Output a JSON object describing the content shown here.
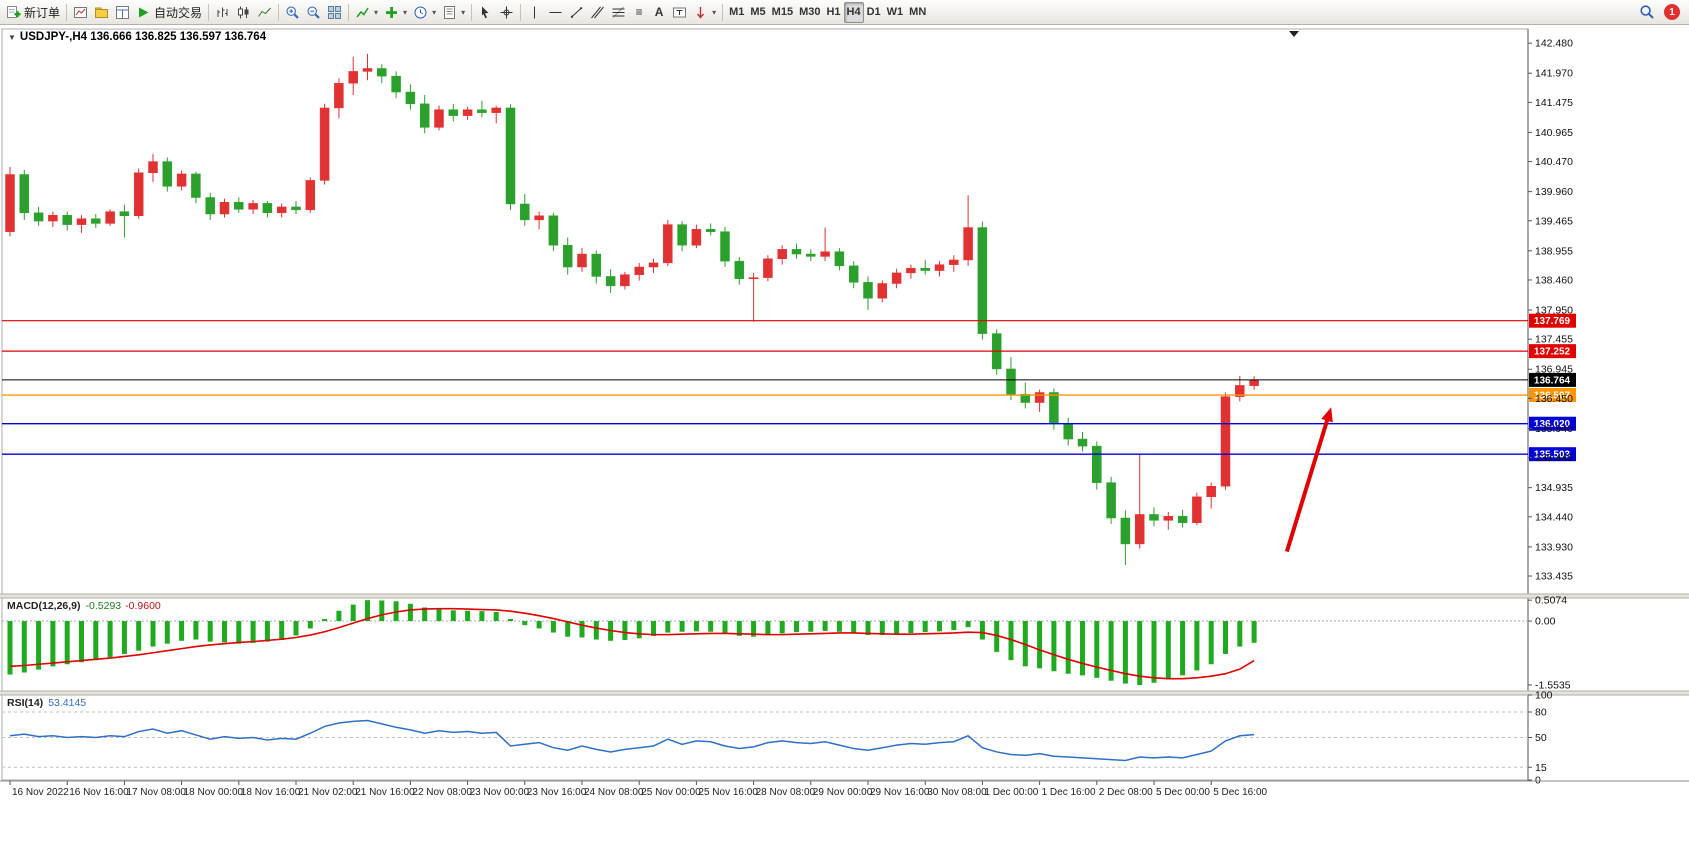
{
  "toolbar": {
    "new_order_label": "新订单",
    "autotrade_label": "自动交易",
    "timeframes": [
      "M1",
      "M5",
      "M15",
      "M30",
      "H1",
      "H4",
      "D1",
      "W1",
      "MN"
    ],
    "active_timeframe": "H4",
    "notification_count": "1"
  },
  "chart_header": {
    "expand_glyph": "▼",
    "symbol_period": "USDJPY-,H4",
    "ohlc": "136.666 136.825 136.597 136.764"
  },
  "indicators": {
    "macd_label": "MACD(12,26,9)",
    "macd_value_main": "-0.5293",
    "macd_value_signal": "-0.9600",
    "rsi_label": "RSI(14)",
    "rsi_value": "53.4145"
  },
  "time_axis": {
    "labels": [
      "16 Nov 2022",
      "16 Nov 16:00",
      "17 Nov 08:00",
      "18 Nov 00:00",
      "18 Nov 16:00",
      "21 Nov 02:00",
      "21 Nov 16:00",
      "22 Nov 08:00",
      "23 Nov 00:00",
      "23 Nov 16:00",
      "24 Nov 08:00",
      "25 Nov 00:00",
      "25 Nov 16:00",
      "28 Nov 08:00",
      "29 Nov 00:00",
      "29 Nov 16:00",
      "30 Nov 08:00",
      "1 Dec 00:00",
      "1 Dec 16:00",
      "2 Dec 08:00",
      "5 Dec 00:00",
      "5 Dec 16:00"
    ]
  },
  "chart_data": [
    {
      "type": "candlestick",
      "title": "USDJPY-,H4",
      "ohlc_current": {
        "open": "136.666",
        "high": "136.825",
        "low": "136.597",
        "close": "136.764"
      },
      "up_color": "#e03232",
      "down_color": "#2ca02c",
      "ylim": [
        133.13,
        142.72
      ],
      "y_ticks": [
        "142.480",
        "141.970",
        "141.475",
        "140.965",
        "140.470",
        "139.960",
        "139.465",
        "138.955",
        "138.460",
        "137.950",
        "137.455",
        "136.945",
        "136.450",
        "135.940",
        "135.445",
        "134.935",
        "134.440",
        "133.930",
        "133.435"
      ],
      "candles": [
        [
          139.28,
          140.38,
          139.2,
          140.25
        ],
        [
          140.25,
          140.33,
          139.48,
          139.6
        ],
        [
          139.6,
          139.7,
          139.38,
          139.46
        ],
        [
          139.46,
          139.62,
          139.36,
          139.56
        ],
        [
          139.56,
          139.62,
          139.3,
          139.4
        ],
        [
          139.4,
          139.56,
          139.26,
          139.5
        ],
        [
          139.5,
          139.58,
          139.34,
          139.42
        ],
        [
          139.42,
          139.66,
          139.38,
          139.62
        ],
        [
          139.62,
          139.74,
          139.18,
          139.55
        ],
        [
          139.55,
          140.35,
          139.5,
          140.28
        ],
        [
          140.28,
          140.6,
          140.12,
          140.47
        ],
        [
          140.47,
          140.54,
          139.96,
          140.05
        ],
        [
          140.05,
          140.32,
          139.98,
          140.26
        ],
        [
          140.26,
          140.3,
          139.76,
          139.86
        ],
        [
          139.86,
          139.94,
          139.48,
          139.58
        ],
        [
          139.58,
          139.84,
          139.52,
          139.78
        ],
        [
          139.78,
          139.86,
          139.6,
          139.66
        ],
        [
          139.66,
          139.82,
          139.58,
          139.76
        ],
        [
          139.76,
          139.8,
          139.52,
          139.6
        ],
        [
          139.6,
          139.76,
          139.52,
          139.7
        ],
        [
          139.7,
          139.8,
          139.58,
          139.65
        ],
        [
          139.65,
          140.2,
          139.6,
          140.15
        ],
        [
          140.15,
          141.45,
          140.08,
          141.38
        ],
        [
          141.38,
          141.88,
          141.2,
          141.8
        ],
        [
          141.8,
          142.25,
          141.6,
          142.0
        ],
        [
          142.0,
          142.3,
          141.85,
          142.05
        ],
        [
          142.05,
          142.12,
          141.8,
          141.92
        ],
        [
          141.92,
          142.0,
          141.55,
          141.65
        ],
        [
          141.65,
          141.78,
          141.35,
          141.45
        ],
        [
          141.45,
          141.6,
          140.95,
          141.05
        ],
        [
          141.05,
          141.42,
          141.0,
          141.35
        ],
        [
          141.35,
          141.45,
          141.15,
          141.25
        ],
        [
          141.25,
          141.4,
          141.18,
          141.35
        ],
        [
          141.35,
          141.5,
          141.22,
          141.3
        ],
        [
          141.3,
          141.42,
          141.12,
          141.38
        ],
        [
          141.38,
          141.44,
          139.65,
          139.75
        ],
        [
          139.75,
          139.92,
          139.38,
          139.48
        ],
        [
          139.48,
          139.62,
          139.32,
          139.55
        ],
        [
          139.55,
          139.6,
          138.95,
          139.05
        ],
        [
          139.05,
          139.18,
          138.55,
          138.68
        ],
        [
          138.68,
          139.0,
          138.6,
          138.9
        ],
        [
          138.9,
          138.96,
          138.4,
          138.52
        ],
        [
          138.52,
          138.64,
          138.24,
          138.36
        ],
        [
          138.36,
          138.6,
          138.3,
          138.55
        ],
        [
          138.55,
          138.75,
          138.45,
          138.68
        ],
        [
          138.68,
          138.82,
          138.58,
          138.75
        ],
        [
          138.75,
          139.48,
          138.7,
          139.4
        ],
        [
          139.4,
          139.46,
          138.95,
          139.05
        ],
        [
          139.05,
          139.4,
          139.0,
          139.32
        ],
        [
          139.32,
          139.42,
          139.22,
          139.28
        ],
        [
          139.28,
          139.36,
          138.68,
          138.78
        ],
        [
          138.78,
          138.85,
          138.38,
          138.48
        ],
        [
          138.48,
          138.58,
          137.75,
          138.5
        ],
        [
          138.5,
          138.88,
          138.44,
          138.82
        ],
        [
          138.82,
          139.05,
          138.72,
          138.98
        ],
        [
          138.98,
          139.08,
          138.82,
          138.9
        ],
        [
          138.9,
          138.98,
          138.78,
          138.86
        ],
        [
          138.86,
          139.35,
          138.78,
          138.94
        ],
        [
          138.94,
          139.0,
          138.62,
          138.7
        ],
        [
          138.7,
          138.78,
          138.32,
          138.42
        ],
        [
          138.42,
          138.52,
          137.95,
          138.15
        ],
        [
          138.15,
          138.45,
          138.08,
          138.4
        ],
        [
          138.4,
          138.65,
          138.32,
          138.58
        ],
        [
          138.58,
          138.72,
          138.48,
          138.66
        ],
        [
          138.66,
          138.8,
          138.55,
          138.62
        ],
        [
          138.62,
          138.78,
          138.52,
          138.72
        ],
        [
          138.72,
          138.88,
          138.6,
          138.8
        ],
        [
          138.8,
          139.9,
          138.7,
          139.35
        ],
        [
          139.35,
          139.45,
          137.45,
          137.55
        ],
        [
          137.55,
          137.62,
          136.85,
          136.95
        ],
        [
          136.95,
          137.15,
          136.42,
          136.52
        ],
        [
          136.52,
          136.72,
          136.28,
          136.38
        ],
        [
          136.38,
          136.6,
          136.22,
          136.55
        ],
        [
          136.55,
          136.62,
          135.92,
          136.02
        ],
        [
          136.02,
          136.12,
          135.65,
          135.76
        ],
        [
          135.76,
          135.88,
          135.55,
          135.64
        ],
        [
          135.64,
          135.72,
          134.9,
          135.02
        ],
        [
          135.02,
          135.12,
          134.32,
          134.42
        ],
        [
          134.42,
          134.55,
          133.62,
          133.98
        ],
        [
          133.98,
          135.5,
          133.9,
          134.48
        ],
        [
          134.48,
          134.6,
          134.28,
          134.38
        ],
        [
          134.38,
          134.52,
          134.22,
          134.45
        ],
        [
          134.45,
          134.56,
          134.26,
          134.34
        ],
        [
          134.34,
          134.85,
          134.3,
          134.78
        ],
        [
          134.78,
          135.02,
          134.58,
          134.96
        ],
        [
          134.96,
          136.55,
          134.9,
          136.48
        ],
        [
          136.48,
          136.83,
          136.4,
          136.67
        ],
        [
          136.666,
          136.825,
          136.597,
          136.764
        ]
      ],
      "hlines": [
        {
          "price": 137.769,
          "label": "137.769",
          "color": "#e00000",
          "width": 1.2
        },
        {
          "price": 137.252,
          "label": "137.252",
          "color": "#e00000",
          "width": 1.2
        },
        {
          "price": 136.764,
          "label": "136.764",
          "color": "#000000",
          "width": 1.0
        },
        {
          "price": 136.507,
          "label": "136.507",
          "color": "#ff9500",
          "width": 1.4
        },
        {
          "price": 136.02,
          "label": "136.020",
          "color": "#0000d8",
          "width": 1.4
        },
        {
          "price": 135.503,
          "label": "135.503",
          "color": "#0000d8",
          "width": 1.4
        }
      ],
      "arrow": {
        "x1_frac": 0.842,
        "price1": 133.85,
        "x2_frac": 0.871,
        "price2": 136.3,
        "color": "#e00000"
      }
    },
    {
      "type": "macd_histogram",
      "name": "MACD(12,26,9)",
      "values_text": "-0.5293 -0.9600",
      "histogram_color": "#1faa1f",
      "signal_color": "#e00000",
      "ylim": [
        -1.7,
        0.56
      ],
      "y_ticks": [
        {
          "label": "0.5074",
          "value": 0.5074
        },
        {
          "label": "0.00",
          "value": 0
        },
        {
          "label": "-1.5535",
          "value": -1.5535
        }
      ],
      "histogram": [
        -1.3,
        -1.25,
        -1.18,
        -1.1,
        -1.05,
        -1.0,
        -0.95,
        -0.88,
        -0.8,
        -0.72,
        -0.62,
        -0.55,
        -0.48,
        -0.45,
        -0.5,
        -0.52,
        -0.55,
        -0.53,
        -0.5,
        -0.46,
        -0.35,
        -0.18,
        0.05,
        0.25,
        0.4,
        0.5074,
        0.5,
        0.48,
        0.42,
        0.33,
        0.28,
        0.26,
        0.25,
        0.24,
        0.22,
        0.05,
        -0.1,
        -0.18,
        -0.28,
        -0.38,
        -0.4,
        -0.45,
        -0.48,
        -0.46,
        -0.42,
        -0.36,
        -0.28,
        -0.26,
        -0.25,
        -0.26,
        -0.3,
        -0.36,
        -0.38,
        -0.35,
        -0.3,
        -0.27,
        -0.26,
        -0.24,
        -0.26,
        -0.3,
        -0.34,
        -0.34,
        -0.32,
        -0.29,
        -0.27,
        -0.25,
        -0.22,
        -0.15,
        -0.45,
        -0.75,
        -0.95,
        -1.1,
        -1.15,
        -1.22,
        -1.28,
        -1.32,
        -1.38,
        -1.45,
        -1.52,
        -1.5535,
        -1.5,
        -1.42,
        -1.32,
        -1.2,
        -1.05,
        -0.8,
        -0.62,
        -0.5293
      ],
      "signal": [
        -1.1,
        -1.08,
        -1.05,
        -1.02,
        -0.99,
        -0.96,
        -0.93,
        -0.9,
        -0.86,
        -0.82,
        -0.77,
        -0.72,
        -0.67,
        -0.62,
        -0.58,
        -0.55,
        -0.52,
        -0.5,
        -0.47,
        -0.44,
        -0.4,
        -0.34,
        -0.26,
        -0.16,
        -0.05,
        0.06,
        0.15,
        0.22,
        0.27,
        0.29,
        0.3,
        0.3,
        0.29,
        0.28,
        0.27,
        0.24,
        0.19,
        0.13,
        0.06,
        -0.02,
        -0.1,
        -0.17,
        -0.23,
        -0.28,
        -0.31,
        -0.33,
        -0.33,
        -0.32,
        -0.31,
        -0.3,
        -0.3,
        -0.31,
        -0.32,
        -0.33,
        -0.33,
        -0.32,
        -0.31,
        -0.3,
        -0.29,
        -0.29,
        -0.3,
        -0.31,
        -0.32,
        -0.32,
        -0.31,
        -0.3,
        -0.29,
        -0.27,
        -0.28,
        -0.35,
        -0.45,
        -0.57,
        -0.7,
        -0.82,
        -0.93,
        -1.03,
        -1.12,
        -1.2,
        -1.28,
        -1.34,
        -1.38,
        -1.4,
        -1.4,
        -1.38,
        -1.34,
        -1.28,
        -1.17,
        -0.96
      ]
    },
    {
      "type": "rsi_line",
      "name": "RSI(14)",
      "value_text": "53.4145",
      "line_color": "#2f6fc4",
      "levels": [
        80,
        50,
        15
      ],
      "ylim": [
        0,
        100
      ],
      "y_ticks": [
        "100",
        "80",
        "50",
        "15",
        "0"
      ],
      "values": [
        52,
        54,
        51,
        52,
        50,
        51,
        50,
        52,
        51,
        57,
        60,
        55,
        58,
        53,
        48,
        51,
        49,
        50,
        47,
        49,
        48,
        55,
        63,
        67,
        69,
        70,
        66,
        62,
        59,
        55,
        58,
        56,
        57,
        55,
        56,
        40,
        42,
        44,
        38,
        35,
        40,
        36,
        33,
        36,
        38,
        40,
        48,
        42,
        46,
        45,
        40,
        37,
        39,
        44,
        46,
        44,
        43,
        45,
        41,
        37,
        35,
        38,
        41,
        43,
        42,
        44,
        45,
        52,
        38,
        33,
        30,
        29,
        31,
        28,
        27,
        26,
        25,
        24,
        23,
        27,
        26,
        27,
        26,
        30,
        34,
        46,
        52,
        53.41
      ]
    }
  ]
}
